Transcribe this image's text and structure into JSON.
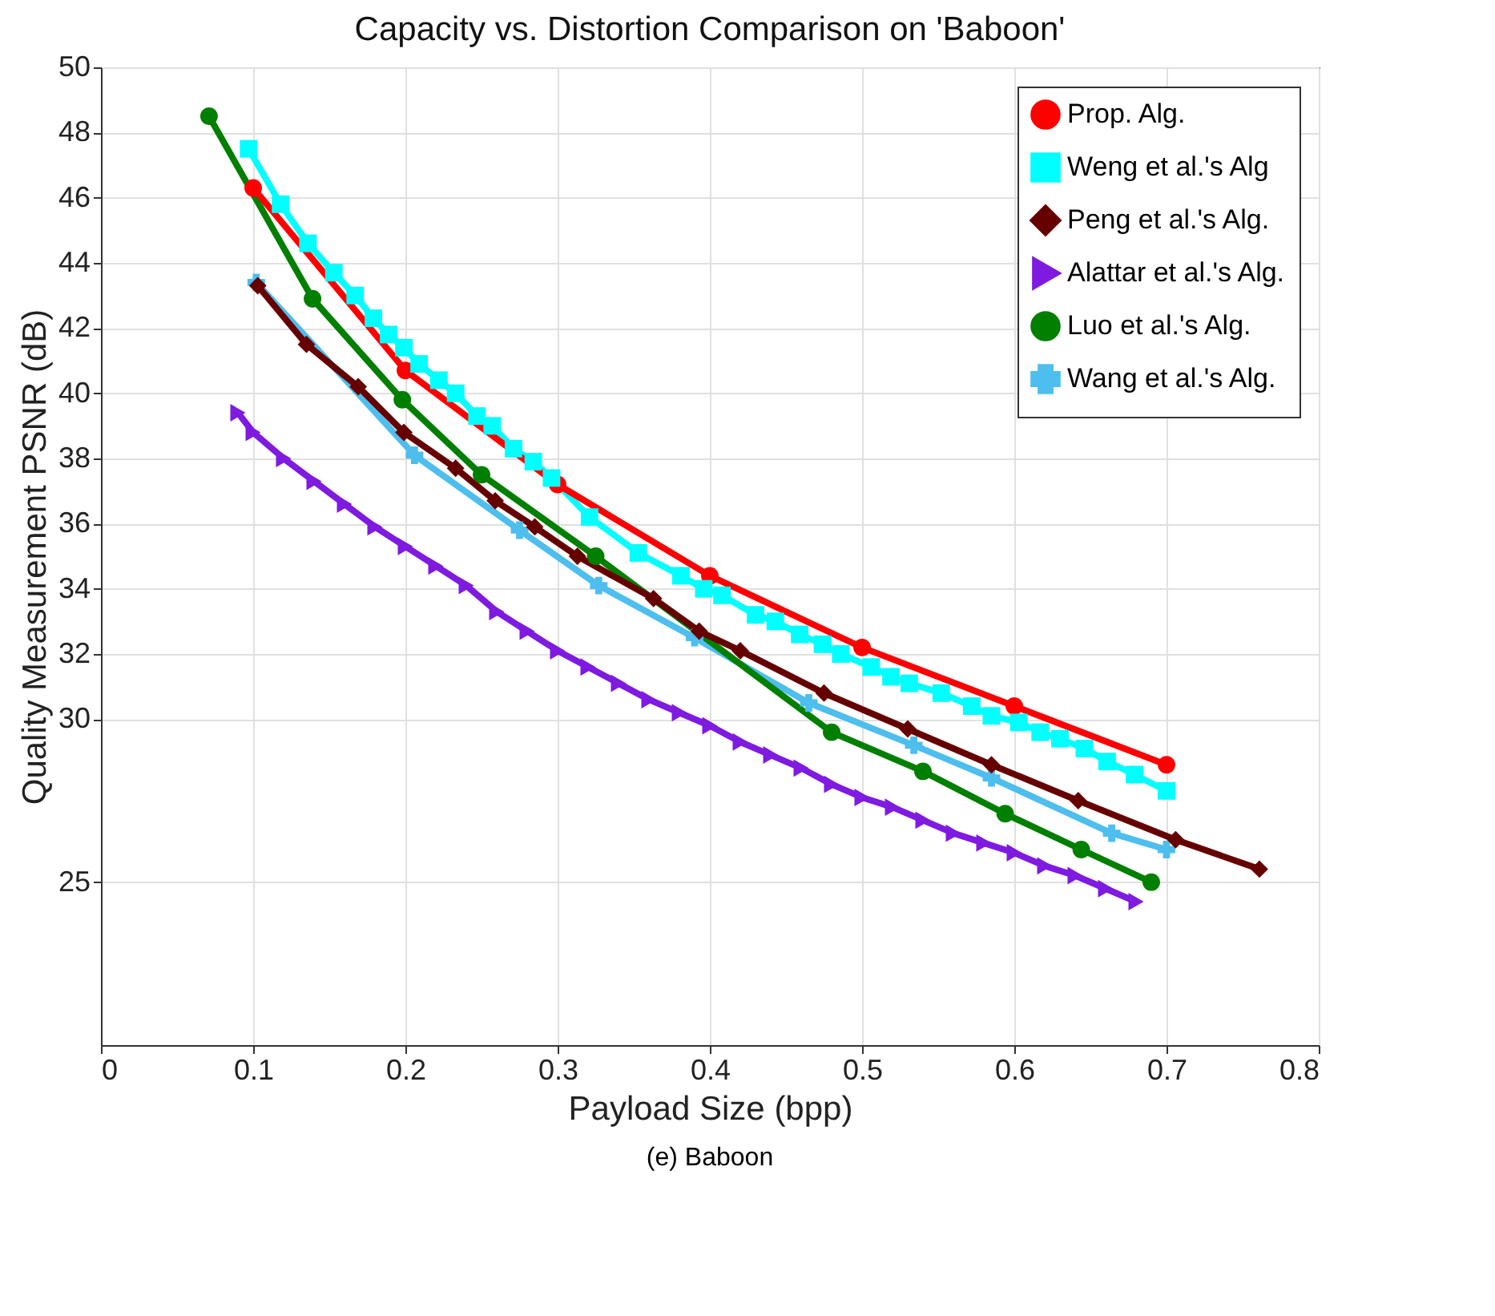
{
  "chart_data": {
    "type": "line",
    "title": "Capacity vs. Distortion Comparison on 'Baboon'",
    "xlabel": "Payload Size (bpp)",
    "ylabel": "Quality Measurement PSNR (dB)",
    "xlim": [
      0,
      0.8
    ],
    "xticks": [
      0,
      0.1,
      0.2,
      0.3,
      0.4,
      0.5,
      0.6,
      0.7,
      0.8
    ],
    "ylim": [
      20,
      50
    ],
    "yticks": [
      25,
      30,
      32,
      34,
      36,
      38,
      40,
      42,
      44,
      46,
      48,
      50
    ],
    "grid": true,
    "legend": "top right",
    "annotations": [
      "(e) Baboon"
    ],
    "series": [
      {
        "name": "Prop. Alg.",
        "color": "#ff0000",
        "marker": "circle",
        "x": [
          0.1,
          0.2,
          0.3,
          0.4,
          0.5,
          0.6,
          0.7
        ],
        "values": [
          46.3,
          40.7,
          37.2,
          34.4,
          32.2,
          30.4,
          28.6
        ]
      },
      {
        "name": "Weng et al.'s Alg",
        "color": "#00ffff",
        "marker": "square",
        "x": [
          0.097,
          0.118,
          0.136,
          0.153,
          0.167,
          0.179,
          0.189,
          0.199,
          0.209,
          0.222,
          0.233,
          0.247,
          0.257,
          0.271,
          0.284,
          0.296,
          0.321,
          0.353,
          0.381,
          0.396,
          0.408,
          0.43,
          0.443,
          0.459,
          0.474,
          0.486,
          0.506,
          0.519,
          0.531,
          0.552,
          0.572,
          0.585,
          0.603,
          0.617,
          0.63,
          0.646,
          0.661,
          0.679,
          0.7
        ],
        "values": [
          47.5,
          45.8,
          44.6,
          43.7,
          43.0,
          42.3,
          41.8,
          41.4,
          40.9,
          40.4,
          40.0,
          39.3,
          39.0,
          38.3,
          37.9,
          37.4,
          36.2,
          35.1,
          34.4,
          34.0,
          33.8,
          33.2,
          33.0,
          32.6,
          32.3,
          32.0,
          31.6,
          31.3,
          31.1,
          30.8,
          30.4,
          30.1,
          29.9,
          29.6,
          29.4,
          29.1,
          28.7,
          28.3,
          27.8
        ]
      },
      {
        "name": "Peng et al.'s Alg.",
        "color": "#660000",
        "marker": "diamond",
        "x": [
          0.103,
          0.135,
          0.169,
          0.199,
          0.233,
          0.259,
          0.285,
          0.313,
          0.363,
          0.393,
          0.42,
          0.475,
          0.53,
          0.585,
          0.642,
          0.706,
          0.761
        ],
        "values": [
          43.3,
          41.5,
          40.2,
          38.8,
          37.7,
          36.7,
          35.9,
          35.0,
          33.7,
          32.7,
          32.1,
          30.8,
          29.7,
          28.6,
          27.5,
          26.3,
          25.4
        ]
      },
      {
        "name": "Alattar et al.'s Alg.",
        "color": "#7f1ae0",
        "marker": "triangle",
        "x": [
          0.09,
          0.1,
          0.12,
          0.14,
          0.16,
          0.18,
          0.2,
          0.22,
          0.24,
          0.26,
          0.28,
          0.3,
          0.32,
          0.34,
          0.36,
          0.38,
          0.4,
          0.42,
          0.44,
          0.46,
          0.48,
          0.5,
          0.52,
          0.54,
          0.56,
          0.58,
          0.6,
          0.62,
          0.64,
          0.66,
          0.68
        ],
        "values": [
          39.4,
          38.8,
          38.0,
          37.3,
          36.6,
          35.9,
          35.3,
          34.7,
          34.1,
          33.3,
          32.7,
          32.1,
          31.6,
          31.1,
          30.6,
          30.2,
          29.8,
          29.3,
          28.9,
          28.5,
          28.0,
          27.6,
          27.3,
          26.9,
          26.5,
          26.2,
          25.9,
          25.5,
          25.2,
          24.8,
          24.4
        ]
      },
      {
        "name": "Luo et al.'s Alg.",
        "color": "#007f00",
        "marker": "circle",
        "x": [
          0.071,
          0.139,
          0.198,
          0.25,
          0.325,
          0.48,
          0.54,
          0.594,
          0.644,
          0.69
        ],
        "values": [
          48.5,
          42.9,
          39.8,
          37.5,
          35.0,
          29.6,
          28.4,
          27.1,
          26.0,
          25.0
        ]
      },
      {
        "name": "Wang et al.'s Alg.",
        "color": "#4dbeee",
        "marker": "cross",
        "x": [
          0.102,
          0.206,
          0.275,
          0.327,
          0.39,
          0.465,
          0.534,
          0.585,
          0.664,
          0.7
        ],
        "values": [
          43.4,
          38.1,
          35.8,
          34.1,
          32.5,
          30.5,
          29.2,
          28.2,
          26.5,
          26.0
        ]
      }
    ]
  }
}
